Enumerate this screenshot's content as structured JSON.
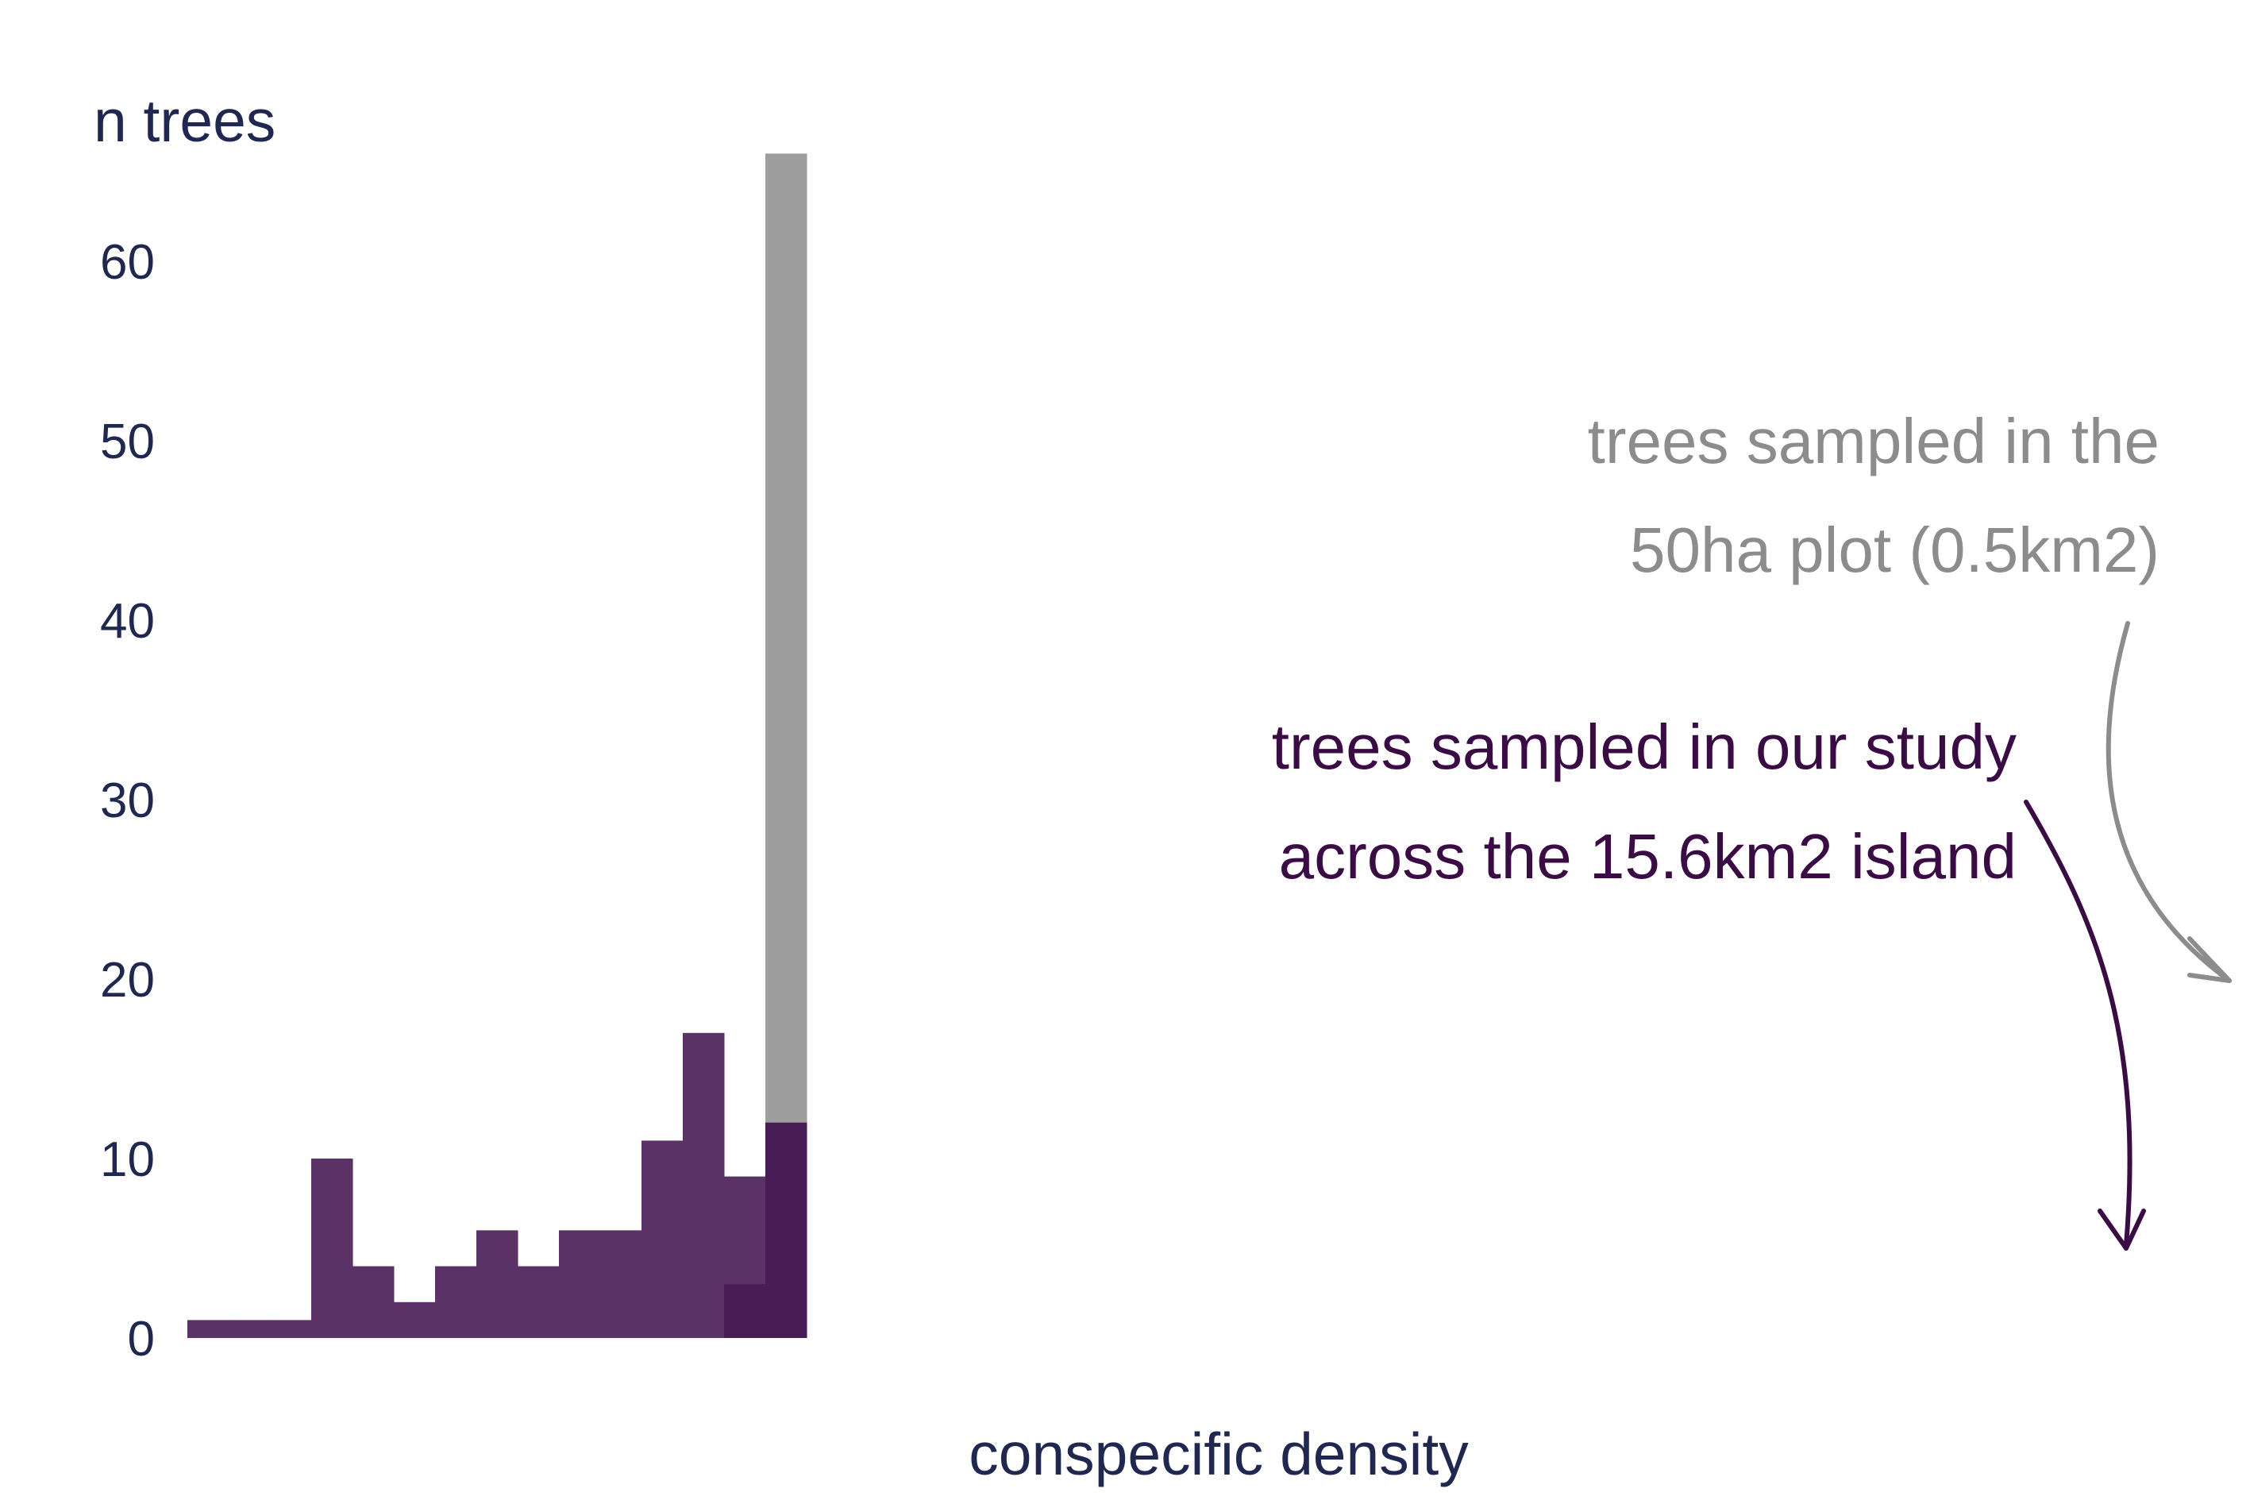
{
  "chart_data": {
    "type": "bar",
    "title": "",
    "ylabel": "n trees",
    "xlabel": "conspecific density",
    "ylim": [
      0,
      66
    ],
    "yticks": [
      0,
      10,
      20,
      30,
      40,
      50,
      60
    ],
    "ytick_labels": [
      "0",
      "10",
      "20",
      "30",
      "40",
      "50",
      "60"
    ],
    "grid": false,
    "series": [
      {
        "key": "study",
        "color": "#5b3266",
        "bins": [
          1,
          2,
          3,
          4,
          5,
          6,
          7,
          8,
          9,
          10,
          11,
          12,
          13,
          14,
          15
        ],
        "values": [
          1,
          1,
          1,
          10,
          4,
          2,
          4,
          6,
          4,
          6,
          6,
          11,
          17,
          9,
          12
        ]
      },
      {
        "key": "plot50ha",
        "color": "#9e9e9e",
        "bins": [
          15
        ],
        "values": [
          66
        ]
      },
      {
        "key": "overlap",
        "color": "#481c54",
        "bins": [
          14,
          15
        ],
        "values": [
          3,
          12
        ]
      }
    ],
    "annotations": [
      {
        "key": "plot50ha",
        "lines": [
          "trees sampled in the",
          "50ha plot (0.5km2)"
        ],
        "color": "#8c8c8c"
      },
      {
        "key": "study",
        "lines": [
          "trees sampled in our study",
          "across the 15.6km2 island"
        ],
        "color": "#3b0b46"
      }
    ]
  }
}
